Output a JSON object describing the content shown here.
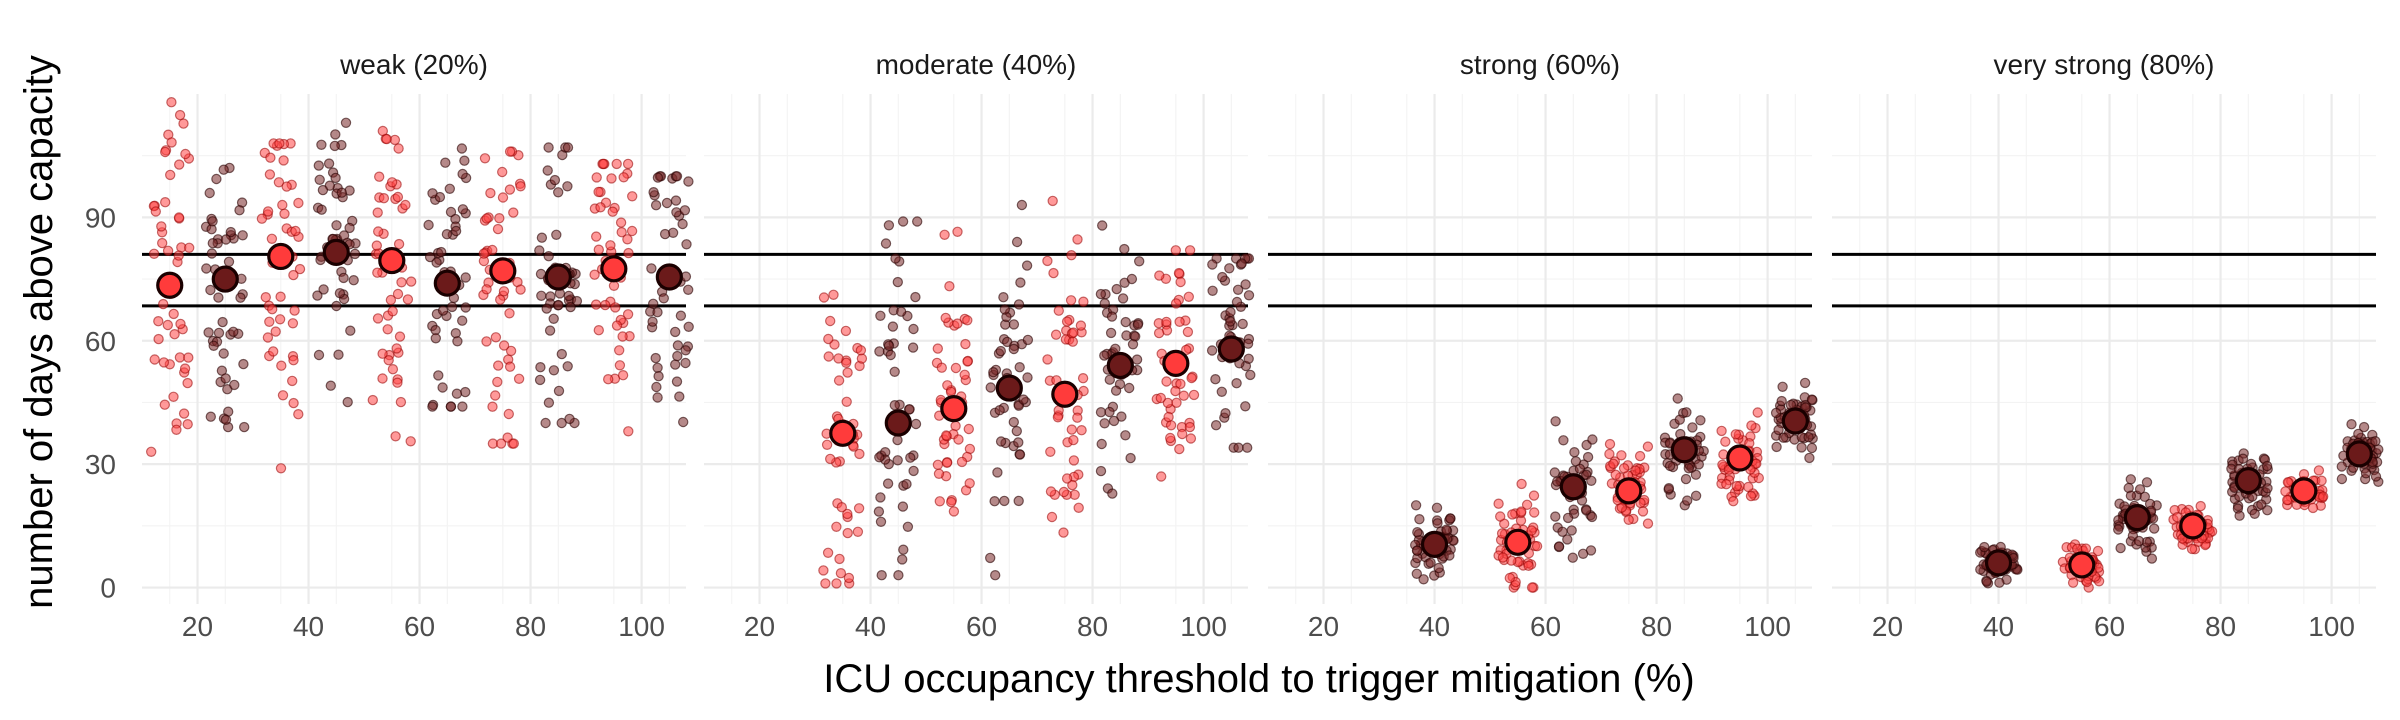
{
  "chart_data": {
    "type": "scatter",
    "xlabel": "ICU occupancy threshold to trigger mitigation (%)",
    "ylabel": "number of days above capacity",
    "x_ticks": [
      20,
      40,
      60,
      80,
      100
    ],
    "y_ticks": [
      0,
      30,
      60,
      90
    ],
    "xlim": [
      10,
      108
    ],
    "ylim": [
      -4,
      120
    ],
    "reference_lines": [
      68.5,
      81
    ],
    "grid": true,
    "series_colors": {
      "light": "#ff3b3b",
      "dark": "#6b1a1a"
    },
    "panels": [
      {
        "label": "weak (20%)",
        "groups": [
          {
            "x": 15,
            "shade": "light",
            "mean": 73.5,
            "spread": 24,
            "min": 33,
            "max": 118
          },
          {
            "x": 25,
            "shade": "dark",
            "mean": 75,
            "spread": 20,
            "min": 39,
            "max": 114
          },
          {
            "x": 35,
            "shade": "light",
            "mean": 80.5,
            "spread": 22,
            "min": 29,
            "max": 108
          },
          {
            "x": 45,
            "shade": "dark",
            "mean": 81.5,
            "spread": 21,
            "min": 40,
            "max": 113
          },
          {
            "x": 55,
            "shade": "light",
            "mean": 79.5,
            "spread": 21,
            "min": 34,
            "max": 111
          },
          {
            "x": 65,
            "shade": "dark",
            "mean": 74,
            "spread": 18,
            "min": 44,
            "max": 107
          },
          {
            "x": 75,
            "shade": "light",
            "mean": 77,
            "spread": 20,
            "min": 35,
            "max": 106
          },
          {
            "x": 85,
            "shade": "dark",
            "mean": 75.5,
            "spread": 19,
            "min": 40,
            "max": 107
          },
          {
            "x": 95,
            "shade": "light",
            "mean": 77.5,
            "spread": 19,
            "min": 38,
            "max": 103
          },
          {
            "x": 105,
            "shade": "dark",
            "mean": 75.5,
            "spread": 18,
            "min": 37,
            "max": 100
          }
        ]
      },
      {
        "label": "moderate (40%)",
        "groups": [
          {
            "x": 35,
            "shade": "light",
            "mean": 37.5,
            "spread": 24,
            "min": 1,
            "max": 101
          },
          {
            "x": 45,
            "shade": "dark",
            "mean": 40,
            "spread": 22,
            "min": 3,
            "max": 89
          },
          {
            "x": 55,
            "shade": "light",
            "mean": 43.5,
            "spread": 20,
            "min": 2,
            "max": 98
          },
          {
            "x": 65,
            "shade": "dark",
            "mean": 48.5,
            "spread": 20,
            "min": 3,
            "max": 93
          },
          {
            "x": 75,
            "shade": "light",
            "mean": 47,
            "spread": 18,
            "min": 8,
            "max": 94
          },
          {
            "x": 85,
            "shade": "dark",
            "mean": 54,
            "spread": 17,
            "min": 12,
            "max": 90
          },
          {
            "x": 95,
            "shade": "light",
            "mean": 54.5,
            "spread": 15,
            "min": 27,
            "max": 82
          },
          {
            "x": 105,
            "shade": "dark",
            "mean": 58,
            "spread": 13,
            "min": 34,
            "max": 80
          }
        ]
      },
      {
        "label": "strong (60%)",
        "groups": [
          {
            "x": 40,
            "shade": "dark",
            "mean": 10.5,
            "spread": 4.5,
            "min": 2,
            "max": 20
          },
          {
            "x": 55,
            "shade": "light",
            "mean": 11,
            "spread": 6.5,
            "min": 0,
            "max": 30
          },
          {
            "x": 65,
            "shade": "dark",
            "mean": 24.5,
            "spread": 7,
            "min": 6,
            "max": 43
          },
          {
            "x": 75,
            "shade": "light",
            "mean": 23.5,
            "spread": 5.5,
            "min": 10,
            "max": 36
          },
          {
            "x": 85,
            "shade": "dark",
            "mean": 33.5,
            "spread": 6,
            "min": 20,
            "max": 52
          },
          {
            "x": 95,
            "shade": "light",
            "mean": 31.5,
            "spread": 4.5,
            "min": 21,
            "max": 43
          },
          {
            "x": 105,
            "shade": "dark",
            "mean": 40.5,
            "spread": 5,
            "min": 26,
            "max": 57
          }
        ]
      },
      {
        "label": "very strong (80%)",
        "groups": [
          {
            "x": 40,
            "shade": "dark",
            "mean": 6,
            "spread": 2.5,
            "min": 0,
            "max": 11
          },
          {
            "x": 55,
            "shade": "light",
            "mean": 5.5,
            "spread": 3,
            "min": 0,
            "max": 12
          },
          {
            "x": 65,
            "shade": "dark",
            "mean": 17,
            "spread": 4.5,
            "min": 3,
            "max": 30
          },
          {
            "x": 75,
            "shade": "light",
            "mean": 15,
            "spread": 3.5,
            "min": 7,
            "max": 25
          },
          {
            "x": 85,
            "shade": "dark",
            "mean": 26,
            "spread": 4,
            "min": 16,
            "max": 36
          },
          {
            "x": 95,
            "shade": "light",
            "mean": 23.5,
            "spread": 2.5,
            "min": 17,
            "max": 30
          },
          {
            "x": 105,
            "shade": "dark",
            "mean": 32.5,
            "spread": 3,
            "min": 24,
            "max": 41
          }
        ]
      }
    ]
  }
}
